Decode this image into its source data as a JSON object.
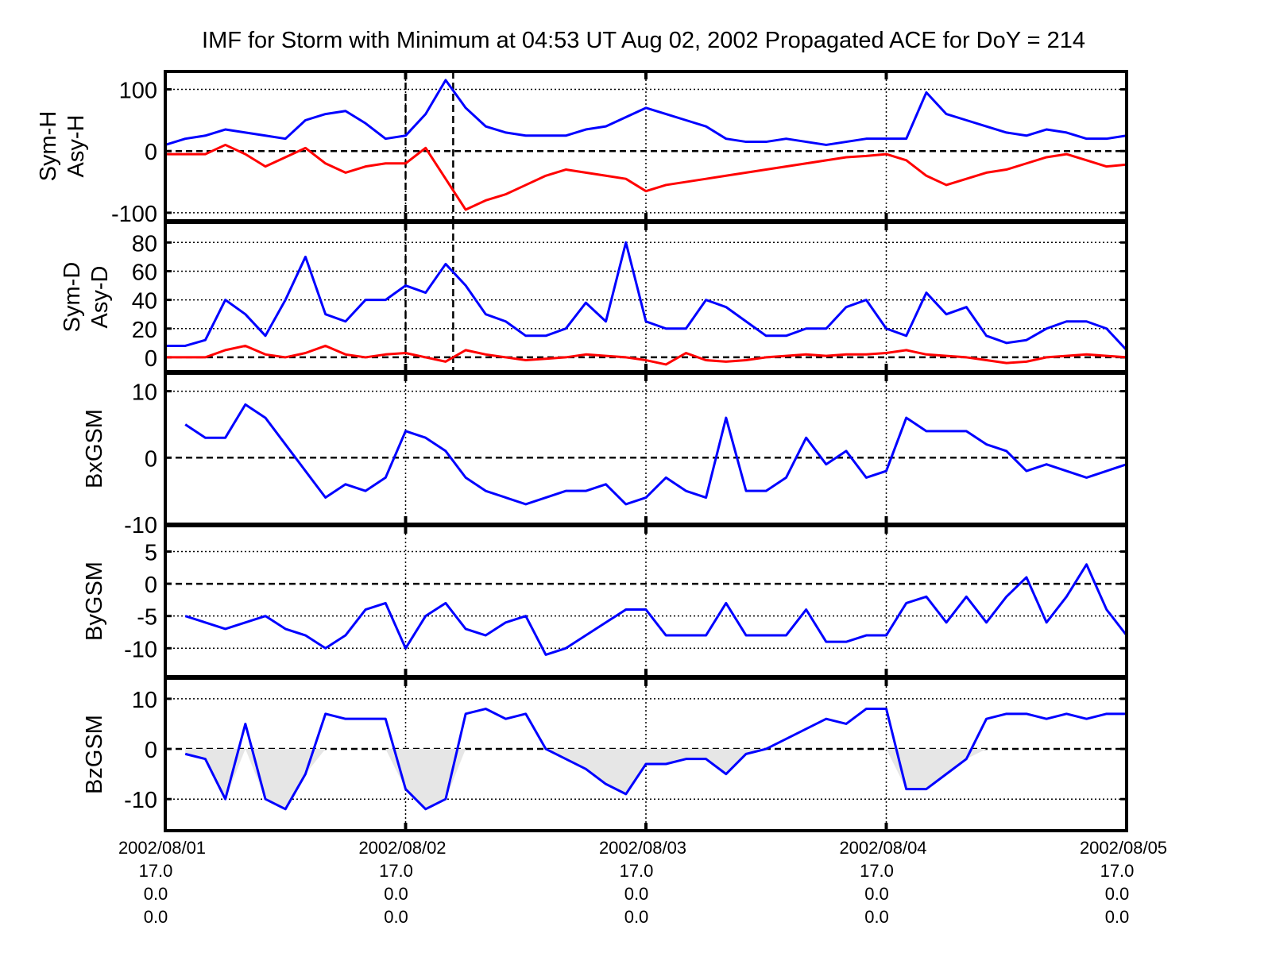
{
  "chart_data": {
    "type": "line",
    "title": "IMF for Storm with Minimum at 04:53 UT Aug 02, 2002  Propagated ACE for DoY = 214",
    "x_unit": "hours since 2002/08/01 17.0",
    "x_step_hours": 2,
    "xlim": [
      0,
      96
    ],
    "x_ticks": [
      {
        "hour": 0,
        "lines": [
          "2002/08/01",
          "17.0",
          "0.0",
          "0.0"
        ]
      },
      {
        "hour": 24,
        "lines": [
          "2002/08/02",
          "17.0",
          "0.0",
          "0.0"
        ]
      },
      {
        "hour": 48,
        "lines": [
          "2002/08/03",
          "17.0",
          "0.0",
          "0.0"
        ]
      },
      {
        "hour": 72,
        "lines": [
          "2002/08/04",
          "17.0",
          "0.0",
          "0.0"
        ]
      },
      {
        "hour": 96,
        "lines": [
          "2002/08/05",
          "17.0",
          "0.0",
          "0.0"
        ]
      }
    ],
    "markers_hours": [
      24,
      28.75
    ],
    "grid": true,
    "colors": {
      "blue": "#0000ff",
      "red": "#ff0000",
      "shade": "#e6e6e6"
    },
    "panels": [
      {
        "ylabel": [
          "Sym-H",
          "Asy-H"
        ],
        "ylim": [
          -113,
          129
        ],
        "yticks": [
          100,
          0,
          -100
        ],
        "markers": true,
        "shade_negative": false,
        "series": [
          {
            "name": "Asy-H",
            "color": "#0000ff",
            "values": [
              10,
              20,
              25,
              35,
              30,
              25,
              20,
              50,
              60,
              65,
              45,
              20,
              25,
              60,
              115,
              70,
              40,
              30,
              25,
              25,
              25,
              35,
              40,
              55,
              70,
              60,
              50,
              40,
              20,
              15,
              15,
              20,
              15,
              10,
              15,
              20,
              20,
              20,
              95,
              60,
              50,
              40,
              30,
              25,
              35,
              30,
              20,
              20,
              25
            ]
          },
          {
            "name": "Sym-H",
            "color": "#ff0000",
            "values": [
              -5,
              -5,
              -5,
              10,
              -5,
              -25,
              -10,
              5,
              -20,
              -35,
              -25,
              -20,
              -20,
              5,
              -45,
              -95,
              -80,
              -70,
              -55,
              -40,
              -30,
              -35,
              -40,
              -45,
              -65,
              -55,
              -50,
              -45,
              -40,
              -35,
              -30,
              -25,
              -20,
              -15,
              -10,
              -8,
              -5,
              -15,
              -40,
              -55,
              -45,
              -35,
              -30,
              -20,
              -10,
              -5,
              -15,
              -25,
              -22
            ]
          }
        ]
      },
      {
        "ylabel": [
          "Sym-D",
          "Asy-D"
        ],
        "ylim": [
          -10,
          94
        ],
        "yticks": [
          80,
          60,
          40,
          20,
          0
        ],
        "markers": true,
        "shade_negative": false,
        "series": [
          {
            "name": "Asy-D",
            "color": "#0000ff",
            "values": [
              8,
              8,
              12,
              40,
              30,
              15,
              40,
              70,
              30,
              25,
              40,
              40,
              50,
              45,
              65,
              50,
              30,
              25,
              15,
              15,
              20,
              38,
              25,
              80,
              25,
              20,
              20,
              40,
              35,
              25,
              15,
              15,
              20,
              20,
              35,
              40,
              20,
              15,
              45,
              30,
              35,
              15,
              10,
              12,
              20,
              25,
              25,
              20,
              5
            ]
          },
          {
            "name": "Sym-D",
            "color": "#ff0000",
            "values": [
              0,
              0,
              0,
              5,
              8,
              2,
              0,
              3,
              8,
              2,
              0,
              2,
              3,
              0,
              -3,
              5,
              2,
              0,
              -2,
              -1,
              0,
              2,
              1,
              0,
              -2,
              -5,
              3,
              -2,
              -3,
              -2,
              0,
              1,
              2,
              1,
              2,
              2,
              3,
              5,
              2,
              1,
              0,
              -2,
              -4,
              -3,
              0,
              1,
              2,
              1,
              0
            ]
          }
        ]
      },
      {
        "ylabel": [
          "BxGSM"
        ],
        "ylim": [
          -10,
          12.7
        ],
        "yticks": [
          10,
          0,
          -10
        ],
        "markers": false,
        "shade_negative": false,
        "series": [
          {
            "name": "BxGSM",
            "color": "#0000ff",
            "values": [
              null,
              5,
              3,
              3,
              8,
              6,
              2,
              -2,
              -6,
              -4,
              -5,
              -3,
              4,
              3,
              1,
              -3,
              -5,
              -6,
              -7,
              -6,
              -5,
              -5,
              -4,
              -7,
              -6,
              -3,
              -5,
              -6,
              6,
              -5,
              -5,
              -3,
              3,
              -1,
              1,
              -3,
              -2,
              6,
              4,
              4,
              4,
              2,
              1,
              -2,
              -1,
              -2,
              -3,
              -2,
              -1
            ]
          }
        ]
      },
      {
        "ylabel": [
          "ByGSM"
        ],
        "ylim": [
          -14.4,
          9
        ],
        "yticks": [
          5,
          0,
          -5,
          -10
        ],
        "markers": false,
        "shade_negative": false,
        "series": [
          {
            "name": "ByGSM",
            "color": "#0000ff",
            "values": [
              null,
              -5,
              -6,
              -7,
              -6,
              -5,
              -7,
              -8,
              -10,
              -8,
              -4,
              -3,
              -10,
              -5,
              -3,
              -7,
              -8,
              -6,
              -5,
              -11,
              -10,
              -8,
              -6,
              -4,
              -4,
              -8,
              -8,
              -8,
              -3,
              -8,
              -8,
              -8,
              -4,
              -9,
              -9,
              -8,
              -8,
              -3,
              -2,
              -6,
              -2,
              -6,
              -2,
              1,
              -6,
              -2,
              3,
              -4,
              -8
            ]
          }
        ]
      },
      {
        "ylabel": [
          "BzGSM"
        ],
        "ylim": [
          -16.3,
          14.1
        ],
        "yticks": [
          10,
          0,
          -10
        ],
        "markers": false,
        "shade_negative": true,
        "series": [
          {
            "name": "BzGSM",
            "color": "#0000ff",
            "values": [
              null,
              -1,
              -2,
              -10,
              5,
              -10,
              -12,
              -5,
              7,
              6,
              6,
              6,
              -8,
              -12,
              -10,
              7,
              8,
              6,
              7,
              0,
              -2,
              -4,
              -7,
              -9,
              -3,
              -3,
              -2,
              -2,
              -5,
              -1,
              0,
              2,
              4,
              6,
              5,
              8,
              8,
              -8,
              -8,
              -5,
              -2,
              6,
              7,
              7,
              6,
              7,
              6,
              7,
              7
            ]
          }
        ]
      }
    ]
  }
}
